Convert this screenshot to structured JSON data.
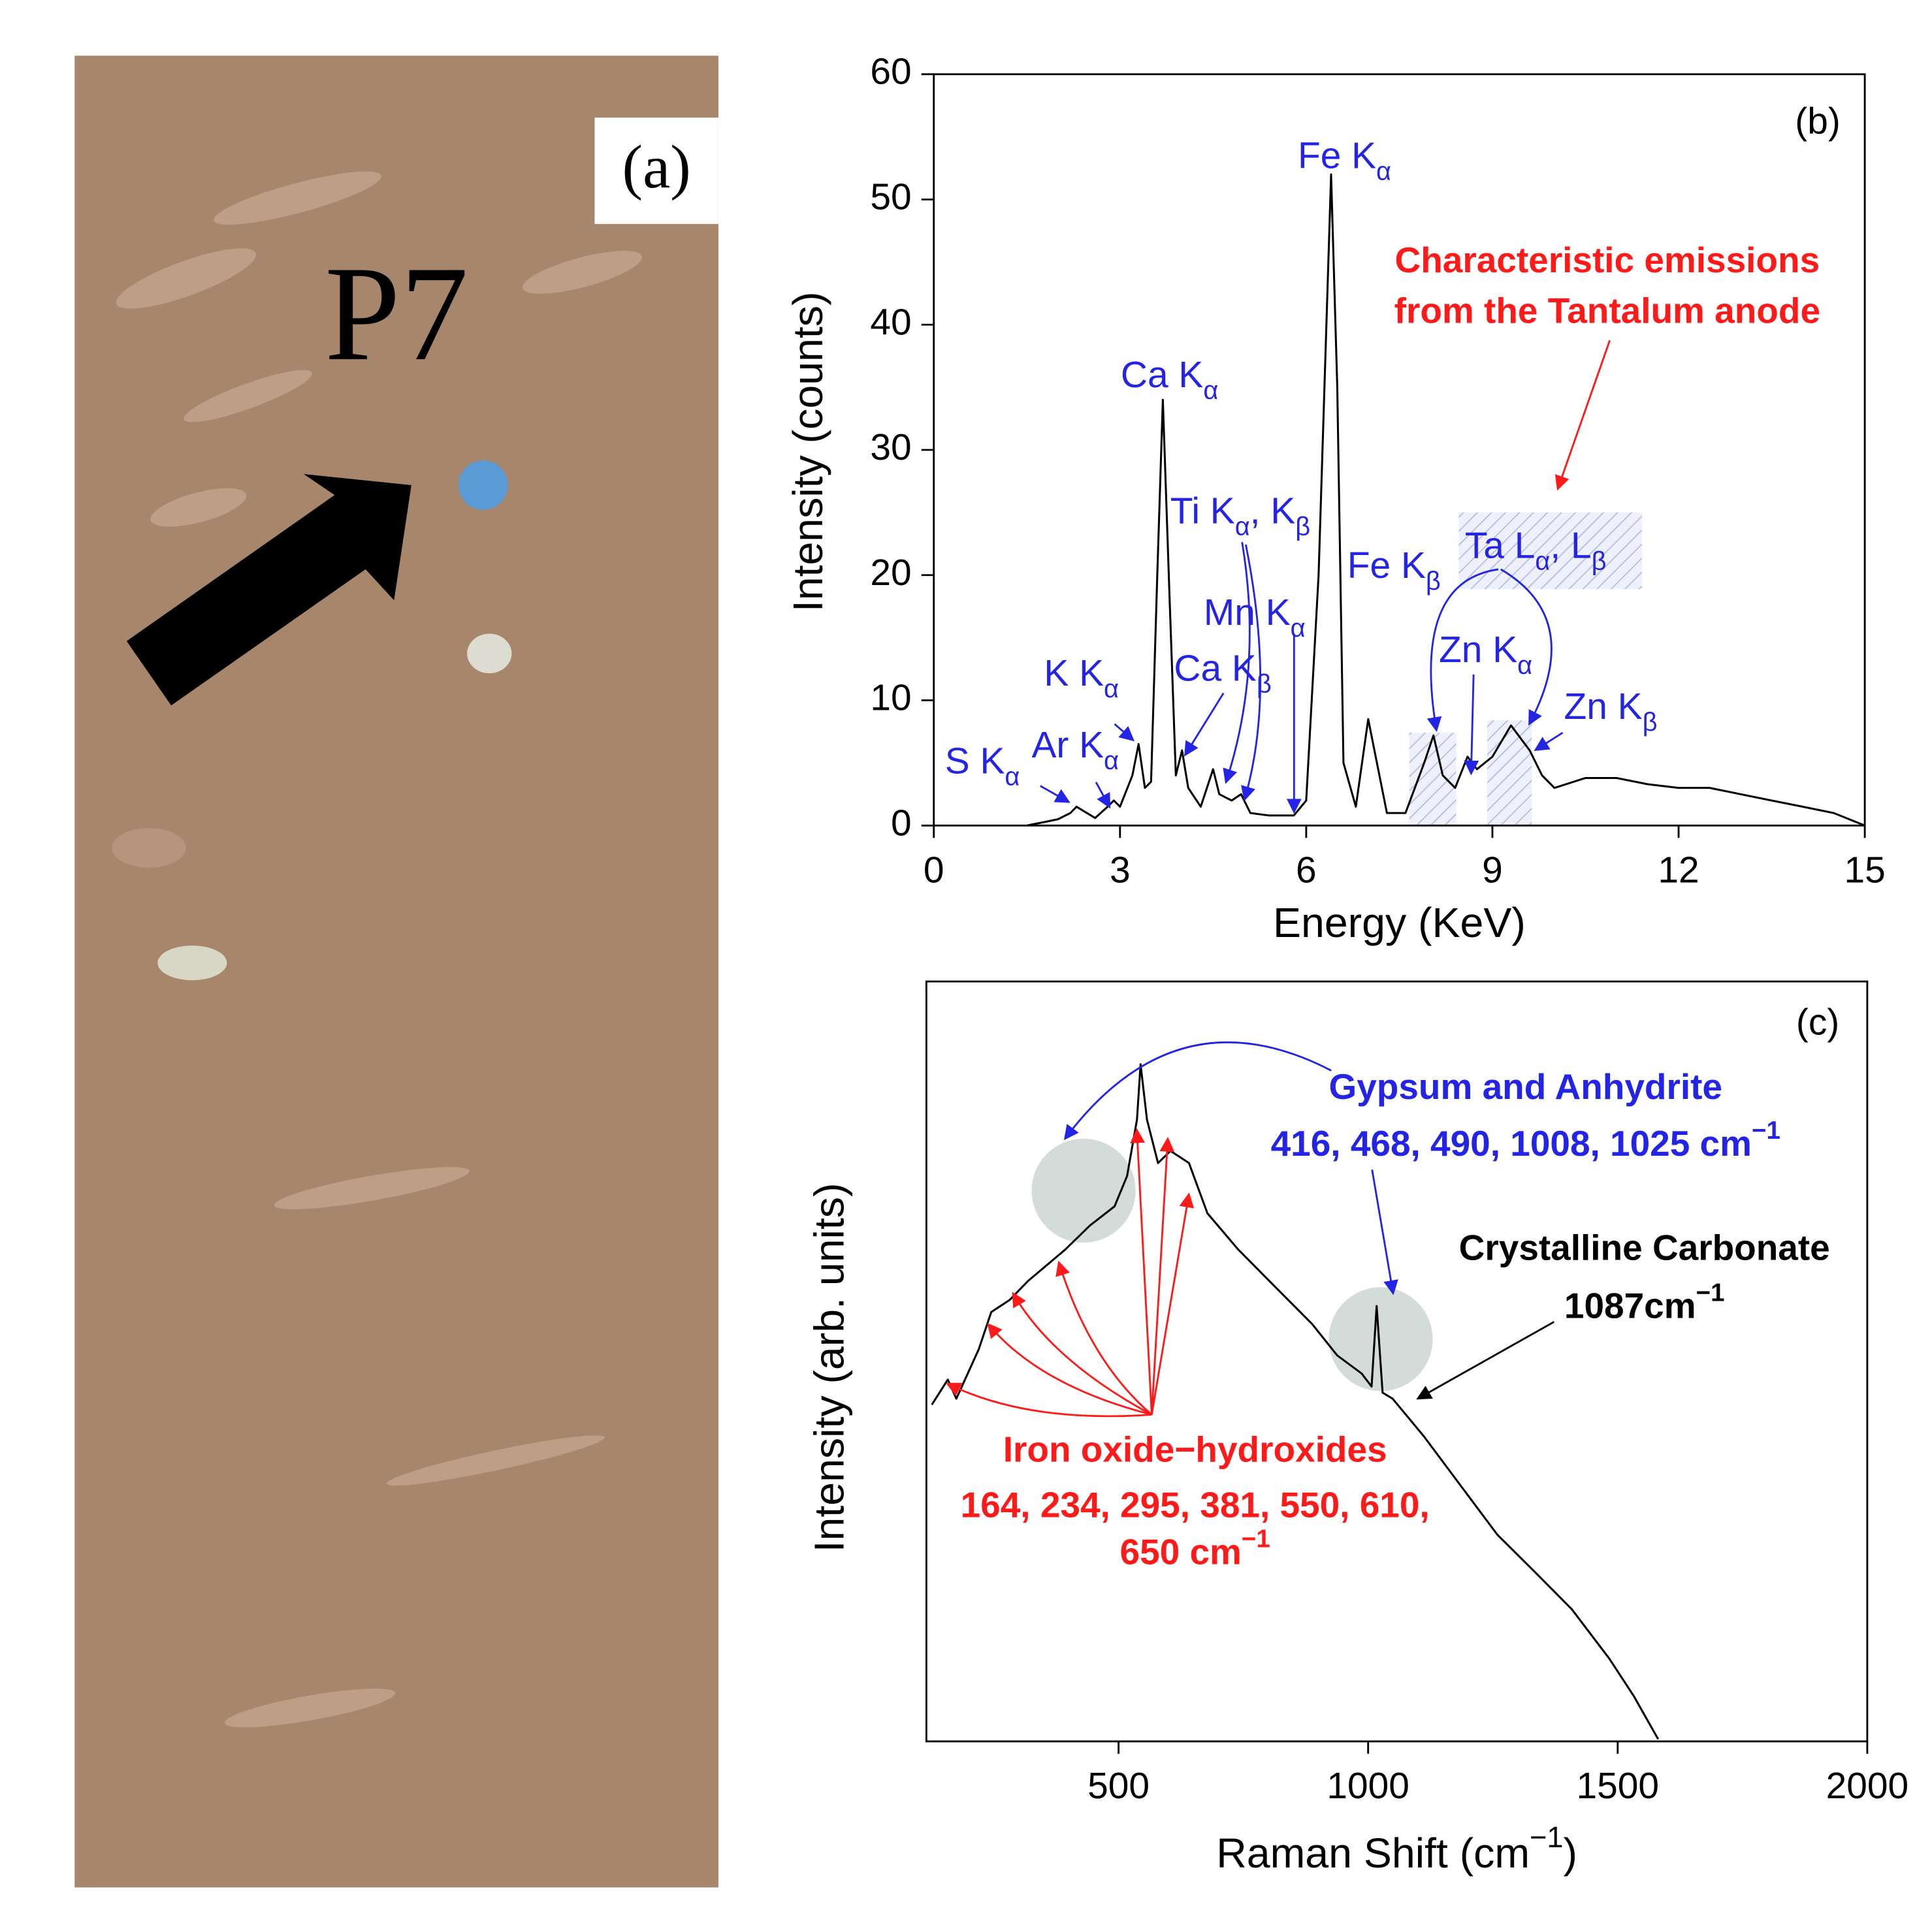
{
  "panel_a": {
    "label": "(a)",
    "site": "P7"
  },
  "chart_data": [
    {
      "type": "line",
      "panel_label": "(b)",
      "x_label": "Energy (KeV)",
      "y_label": "Intensity (counts)",
      "xlim": [
        0,
        15
      ],
      "ylim": [
        0,
        60
      ],
      "xticks": [
        0,
        3,
        6,
        9,
        12,
        15
      ],
      "yticks": [
        0,
        10,
        20,
        30,
        40,
        50,
        60
      ],
      "x": [
        1.5,
        1.8,
        2.0,
        2.2,
        2.3,
        2.4,
        2.6,
        2.8,
        2.9,
        3.0,
        3.2,
        3.3,
        3.4,
        3.5,
        3.6,
        3.69,
        3.8,
        3.9,
        4.0,
        4.1,
        4.3,
        4.5,
        4.6,
        4.8,
        4.95,
        5.1,
        5.4,
        5.8,
        6.0,
        6.2,
        6.4,
        6.5,
        6.6,
        6.8,
        7.0,
        7.1,
        7.3,
        7.6,
        7.9,
        8.05,
        8.2,
        8.4,
        8.6,
        8.75,
        9.0,
        9.3,
        9.6,
        9.8,
        10.0,
        10.5,
        11.0,
        11.5,
        12.0,
        12.5,
        13.0,
        13.5,
        14.0,
        14.5,
        15.0
      ],
      "series": [
        {
          "color": "#000000",
          "values": [
            0,
            0.3,
            0.5,
            1.0,
            1.5,
            1.2,
            0.6,
            1.5,
            2.0,
            1.5,
            4,
            6.5,
            3,
            3.5,
            20,
            34,
            18,
            4,
            6,
            3,
            1.5,
            4.5,
            2.5,
            2.0,
            2.5,
            1.0,
            0.8,
            0.8,
            2,
            20,
            52,
            35,
            5,
            1.5,
            8.5,
            6,
            1,
            1,
            5,
            7.2,
            4,
            3,
            5.5,
            4.5,
            5.5,
            8,
            6,
            4,
            3,
            3.8,
            3.8,
            3.3,
            3,
            3,
            2.5,
            2,
            1.5,
            1,
            0
          ]
        }
      ],
      "annotations": [
        {
          "parts": [
            "Fe K",
            "α"
          ],
          "script": "sub",
          "color": "#2424e6"
        },
        {
          "parts": [
            "Ca K",
            "α"
          ],
          "script": "sub",
          "color": "#2424e6"
        },
        {
          "parts": [
            "Ti K",
            "α",
            ", K",
            "β"
          ],
          "script": "sub",
          "color": "#2424e6"
        },
        {
          "parts": [
            "Mn K",
            "α"
          ],
          "script": "sub",
          "color": "#2424e6"
        },
        {
          "parts": [
            "Ca K",
            "β"
          ],
          "script": "sub",
          "color": "#2424e6"
        },
        {
          "parts": [
            "K K",
            "α"
          ],
          "script": "sub",
          "color": "#2424e6"
        },
        {
          "parts": [
            "Ar K",
            "α"
          ],
          "script": "sub",
          "color": "#2424e6"
        },
        {
          "parts": [
            "S K",
            "α"
          ],
          "script": "sub",
          "color": "#2424e6"
        },
        {
          "parts": [
            "Fe K",
            "β"
          ],
          "script": "sub",
          "color": "#2424e6"
        },
        {
          "parts": [
            "Ta L",
            "α",
            ", L",
            "β"
          ],
          "script": "sub",
          "color": "#2424e6"
        },
        {
          "parts": [
            "Zn K",
            "α"
          ],
          "script": "sub",
          "color": "#2424e6"
        },
        {
          "parts": [
            "Zn K",
            "β"
          ],
          "script": "sub",
          "color": "#2424e6"
        },
        {
          "parts": [
            "Characteristic emissions"
          ],
          "script": "sub",
          "color": "#ff1a1a"
        },
        {
          "parts": [
            "from the Tantalum anode"
          ],
          "script": "sub",
          "color": "#ff1a1a"
        }
      ]
    },
    {
      "type": "line",
      "panel_label": "(c)",
      "x_label": [
        "Raman Shift (cm",
        "−1",
        ")"
      ],
      "y_label": "Intensity (arb. units)",
      "xlim": [
        115,
        2000
      ],
      "ylim": [
        0,
        100
      ],
      "xticks": [
        500,
        1000,
        1500,
        2000
      ],
      "x": [
        126,
        158,
        175,
        220,
        245,
        282,
        319,
        393,
        443,
        492,
        517,
        537,
        544,
        557,
        579,
        604,
        641,
        678,
        740,
        814,
        888,
        938,
        987,
        1007,
        1017,
        1029,
        1049,
        1111,
        1185,
        1259,
        1334,
        1408,
        1483,
        1532,
        1581
      ],
      "series": [
        {
          "color": "#000000",
          "values": [
            44.3,
            47.6,
            45.1,
            51.6,
            56.5,
            58.1,
            60.6,
            64.7,
            67.9,
            70.4,
            74.4,
            81.8,
            89.1,
            81.8,
            76.1,
            77.7,
            76.1,
            69.5,
            64.7,
            59.8,
            54.9,
            50.8,
            48.4,
            46.7,
            57.3,
            45.9,
            45.1,
            40.2,
            33.7,
            27.2,
            22.3,
            17.4,
            10.9,
            6.0,
            0.3
          ]
        }
      ],
      "annotations": [
        {
          "parts": [
            "Gypsum and Anhydrite"
          ],
          "script": "sup",
          "color": "#2424e6"
        },
        {
          "parts": [
            "416, 468, 490, 1008, 1025 cm",
            "−1"
          ],
          "script": "sup",
          "color": "#2424e6"
        },
        {
          "parts": [
            "Crystalline Carbonate"
          ],
          "script": "sup",
          "color": "#000000"
        },
        {
          "parts": [
            "1087cm",
            "−1"
          ],
          "script": "sup",
          "color": "#000000"
        },
        {
          "parts": [
            "Iron oxide−hydroxides"
          ],
          "script": "sup",
          "color": "#ff1a1a"
        },
        {
          "parts": [
            "164, 234, 295, 381, 550, 610,"
          ],
          "script": "sup",
          "color": "#ff1a1a"
        },
        {
          "parts": [
            "650 cm",
            "−1"
          ],
          "script": "sup",
          "color": "#ff1a1a"
        }
      ]
    }
  ]
}
